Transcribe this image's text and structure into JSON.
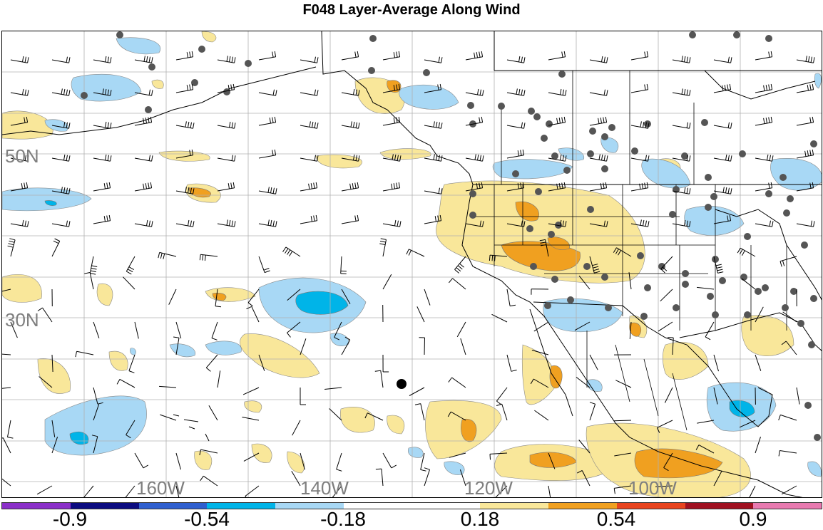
{
  "title": "F048 Layer-Average Along Wind",
  "lat_labels": [
    "50N",
    "30N"
  ],
  "lon_labels": [
    "160W",
    "140W",
    "120W",
    "100W"
  ],
  "colorbar": {
    "colors": [
      "#8b2fc9",
      "#0b0b80",
      "#2f5fcf",
      "#00b4e8",
      "#a8d8f5",
      "#ffffff",
      "#ffffff",
      "#f9e79a",
      "#f0a020",
      "#e8441e",
      "#a01020",
      "#e87ab0"
    ],
    "tick_labels": [
      "-0.9",
      "-0.54",
      "-0.18",
      "0.18",
      "0.54",
      "0.9"
    ]
  },
  "colors": {
    "light_blue": "#a8d8f5",
    "cyan": "#00b4e8",
    "light_yellow": "#f9e79a",
    "orange": "#f0a020",
    "station_dot": "#555555",
    "grid": "#b0b0b0",
    "label_gray": "#7f7f7f"
  }
}
